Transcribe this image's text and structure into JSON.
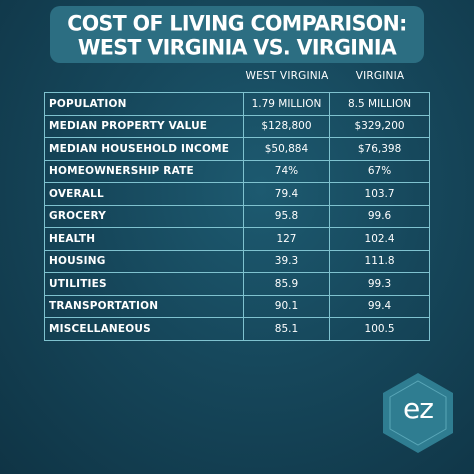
{
  "title": {
    "line1": "COST OF LIVING COMPARISON:",
    "line2": "WEST VIRGINIA VS. VIRGINIA"
  },
  "columns": {
    "wv": "WEST VIRGINIA",
    "va": "VIRGINIA"
  },
  "rows": [
    {
      "label": "POPULATION",
      "wv": "1.79 MILLION",
      "va": "8.5 MILLION"
    },
    {
      "label": "MEDIAN PROPERTY VALUE",
      "wv": "$128,800",
      "va": "$329,200"
    },
    {
      "label": "MEDIAN HOUSEHOLD INCOME",
      "wv": "$50,884",
      "va": "$76,398"
    },
    {
      "label": "HOMEOWNERSHIP RATE",
      "wv": "74%",
      "va": "67%"
    },
    {
      "label": "OVERALL",
      "wv": "79.4",
      "va": "103.7"
    },
    {
      "label": "GROCERY",
      "wv": "95.8",
      "va": "99.6"
    },
    {
      "label": "HEALTH",
      "wv": "127",
      "va": "102.4"
    },
    {
      "label": "HOUSING",
      "wv": "39.3",
      "va": "111.8"
    },
    {
      "label": "UTILITIES",
      "wv": "85.9",
      "va": "99.3"
    },
    {
      "label": "TRANSPORTATION",
      "wv": "90.1",
      "va": "99.4"
    },
    {
      "label": "MISCELLANEOUS",
      "wv": "85.1",
      "va": "100.5"
    }
  ],
  "logo": {
    "text": "ez",
    "icon": "hexagon-logo-icon",
    "color": "#2f7d91"
  },
  "colors": {
    "background": "#16475b",
    "title_box": "#2c6e82",
    "table_border": "#7fc2cf"
  }
}
